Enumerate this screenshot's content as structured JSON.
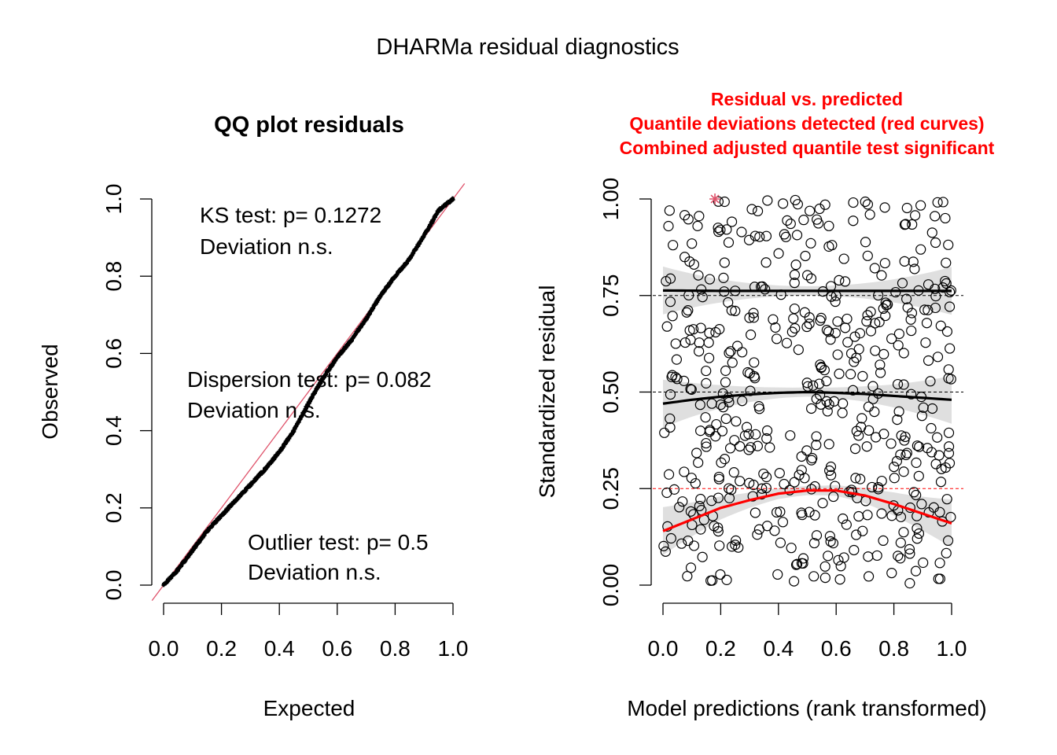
{
  "title": "DHARMa residual diagnostics",
  "colors": {
    "black": "#000000",
    "red": "#ff0000",
    "diag": "#df536b",
    "band": "#d9d9d9"
  },
  "qq_tests": [
    {
      "line1": "KS test: p= 0.1272",
      "line2": "Deviation  n.s."
    },
    {
      "line1": "Dispersion test: p= 0.082",
      "line2": "Deviation  n.s."
    },
    {
      "line1": "Outlier test: p= 0.5",
      "line2": "Deviation  n.s."
    }
  ],
  "resid_title_lines": [
    "Residual vs. predicted",
    "Quantile deviations detected (red curves)",
    "Combined adjusted quantile test significant"
  ],
  "chart_data": [
    {
      "type": "scatter",
      "title": "QQ plot residuals",
      "xlabel": "Expected",
      "ylabel": "Observed",
      "xlim": [
        0,
        1
      ],
      "ylim": [
        0,
        1
      ],
      "x_ticks": [
        "0.0",
        "0.2",
        "0.4",
        "0.6",
        "0.8",
        "1.0"
      ],
      "y_ticks": [
        "0.0",
        "0.2",
        "0.4",
        "0.6",
        "0.8",
        "1.0"
      ],
      "reference_line": {
        "from": [
          0,
          0
        ],
        "to": [
          1,
          1
        ],
        "color": "#df536b"
      },
      "series": [
        {
          "kind": "qq-points",
          "x": [
            0,
            0.05,
            0.1,
            0.15,
            0.2,
            0.25,
            0.3,
            0.35,
            0.4,
            0.45,
            0.5,
            0.55,
            0.6,
            0.65,
            0.7,
            0.75,
            0.8,
            0.85,
            0.9,
            0.95,
            1.0
          ],
          "y": [
            0,
            0.04,
            0.09,
            0.14,
            0.18,
            0.22,
            0.26,
            0.3,
            0.345,
            0.4,
            0.47,
            0.535,
            0.59,
            0.635,
            0.69,
            0.75,
            0.8,
            0.845,
            0.905,
            0.97,
            1.0
          ]
        }
      ]
    },
    {
      "type": "scatter",
      "title": "Residual vs. predicted",
      "xlabel": "Model predictions (rank transformed)",
      "ylabel": "Standardized residual",
      "xlim": [
        0,
        1
      ],
      "ylim": [
        0,
        1
      ],
      "x_ticks": [
        "0.0",
        "0.2",
        "0.4",
        "0.6",
        "0.8",
        "1.0"
      ],
      "y_ticks": [
        "0.00",
        "0.25",
        "0.50",
        "0.75",
        "1.00"
      ],
      "reference_lines": [
        0.25,
        0.5,
        0.75
      ],
      "outlier": {
        "x": 0.18,
        "y": 1.0,
        "marker": "*",
        "color": "#df536b"
      },
      "quantile_curves": [
        {
          "name": "0.25",
          "color": "#ff0000",
          "x": [
            0,
            0.1,
            0.2,
            0.3,
            0.4,
            0.5,
            0.6,
            0.7,
            0.8,
            0.9,
            1.0
          ],
          "y": [
            0.14,
            0.17,
            0.2,
            0.22,
            0.237,
            0.245,
            0.245,
            0.232,
            0.21,
            0.185,
            0.16
          ]
        },
        {
          "name": "0.5",
          "color": "#000000",
          "x": [
            0,
            0.1,
            0.2,
            0.3,
            0.4,
            0.5,
            0.6,
            0.7,
            0.8,
            0.9,
            1.0
          ],
          "y": [
            0.47,
            0.48,
            0.488,
            0.494,
            0.498,
            0.5,
            0.498,
            0.495,
            0.49,
            0.485,
            0.48
          ]
        },
        {
          "name": "0.75",
          "color": "#000000",
          "x": [
            0,
            0.2,
            0.4,
            0.6,
            0.8,
            1.0
          ],
          "y": [
            0.763,
            0.762,
            0.762,
            0.762,
            0.762,
            0.762
          ]
        }
      ]
    }
  ]
}
